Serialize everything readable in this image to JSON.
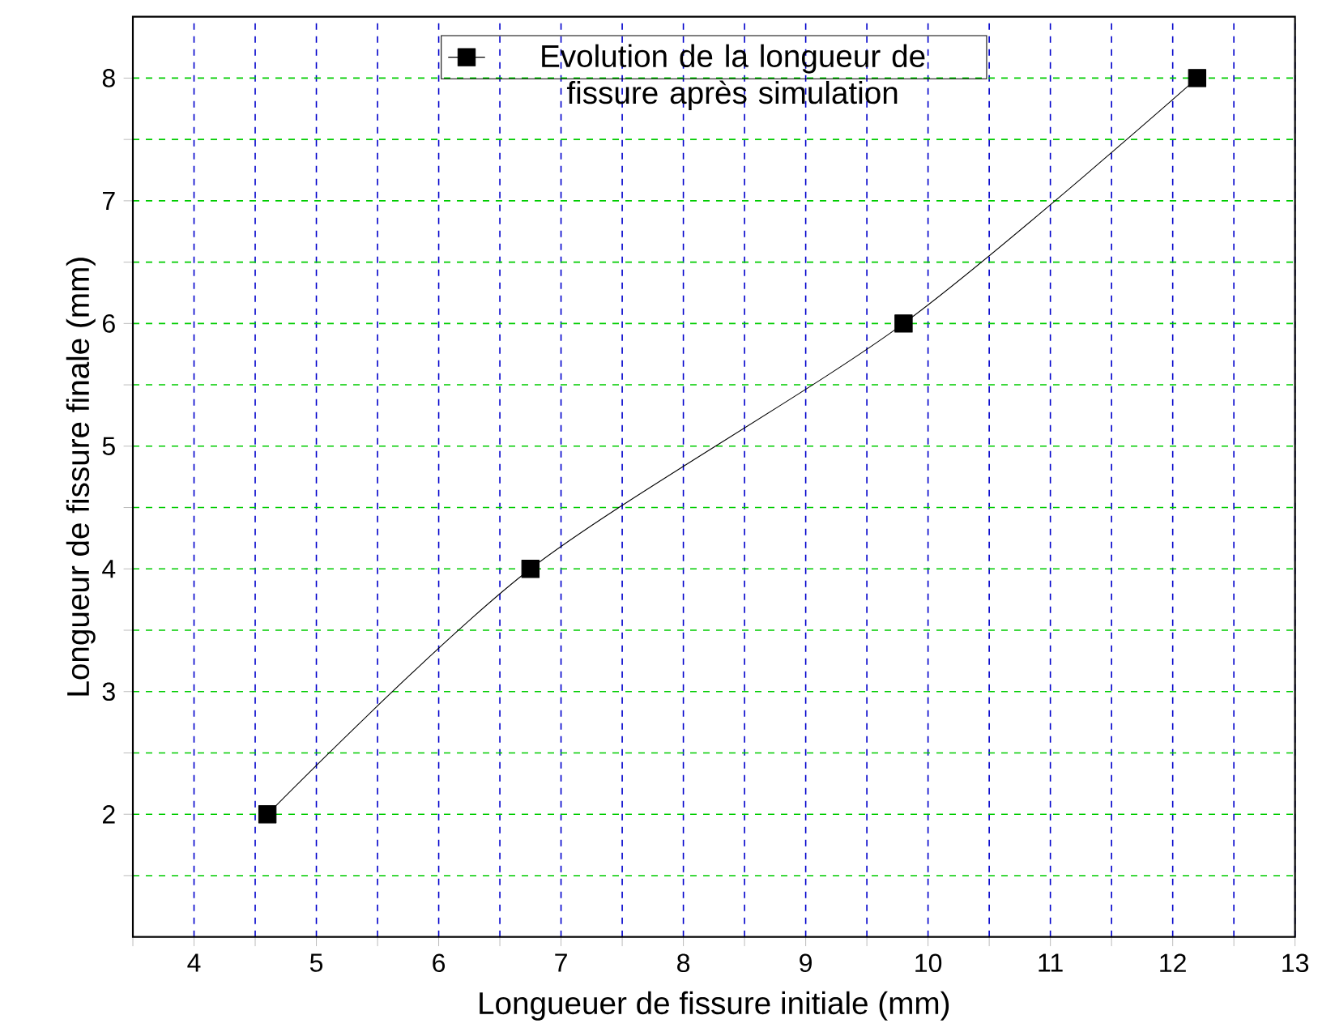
{
  "chart_data": {
    "type": "line",
    "xlabel": "Longueuer de fissure initiale (mm)",
    "ylabel": "Longueur de fissure finale (mm)",
    "x": [
      4.6,
      6.75,
      9.8,
      12.2
    ],
    "series": [
      {
        "name": "Evolution de la longueur de fissure après simulation",
        "color": "#000000",
        "values": [
          2,
          4,
          6,
          8
        ]
      }
    ],
    "xlim": [
      3.5,
      13
    ],
    "ylim": [
      1,
      8.5
    ],
    "xticks": [
      {
        "value": 3.5,
        "label": null
      },
      4,
      {
        "value": 4.5,
        "label": null
      },
      5,
      {
        "value": 5.5,
        "label": null
      },
      6,
      {
        "value": 6.5,
        "label": null
      },
      7,
      {
        "value": 7.5,
        "label": null
      },
      8,
      {
        "value": 8.5,
        "label": null
      },
      9,
      {
        "value": 9.5,
        "label": null
      },
      10,
      {
        "value": 10.5,
        "label": null
      },
      11,
      {
        "value": 11.5,
        "label": null
      },
      12,
      {
        "value": 12.5,
        "label": null
      },
      13
    ],
    "yticks": [
      {
        "value": 1.5,
        "label": null
      },
      2,
      {
        "value": 2.5,
        "label": null
      },
      3,
      {
        "value": 3.5,
        "label": null
      },
      4,
      {
        "value": 4.5,
        "label": null
      },
      5,
      {
        "value": 5.5,
        "label": null
      },
      6,
      {
        "value": 6.5,
        "label": null
      },
      7,
      {
        "value": 7.5,
        "label": null
      },
      8
    ],
    "grid": true,
    "legend": "top",
    "marker": "square",
    "line_style": "solid"
  }
}
